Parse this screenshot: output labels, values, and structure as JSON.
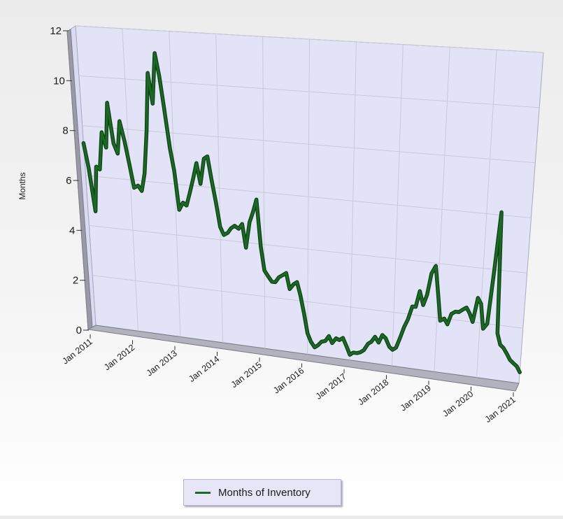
{
  "chart_data": {
    "type": "line",
    "ylabel": "Months",
    "xlabel": "",
    "ylim": [
      0,
      12
    ],
    "yticks": [
      0,
      2,
      4,
      6,
      8,
      10,
      12
    ],
    "xlim": [
      2011.0,
      2021.0
    ],
    "xtick_labels": [
      "Jan 2011",
      "Jan 2012",
      "Jan 2013",
      "Jan 2014",
      "Jan 2015",
      "Jan 2016",
      "Jan 2017",
      "Jan 2018",
      "Jan 2019",
      "Jan 2020",
      "Jan 2021"
    ],
    "grid": true,
    "style": "3d",
    "legend_position": "bottom",
    "series": [
      {
        "name": "Months of Inventory",
        "color": "#1a6a24",
        "points": [
          [
            2011.0,
            7.3
          ],
          [
            2011.08,
            6.3
          ],
          [
            2011.17,
            4.6
          ],
          [
            2011.25,
            6.4
          ],
          [
            2011.33,
            6.3
          ],
          [
            2011.42,
            7.8
          ],
          [
            2011.5,
            7.2
          ],
          [
            2011.58,
            9.0
          ],
          [
            2011.67,
            7.4
          ],
          [
            2011.75,
            7.0
          ],
          [
            2011.83,
            8.3
          ],
          [
            2011.92,
            7.5
          ],
          [
            2012.0,
            6.6
          ],
          [
            2012.08,
            5.7
          ],
          [
            2012.17,
            5.8
          ],
          [
            2012.25,
            5.6
          ],
          [
            2012.33,
            6.3
          ],
          [
            2012.42,
            8.0
          ],
          [
            2012.5,
            10.3
          ],
          [
            2012.58,
            9.1
          ],
          [
            2012.67,
            11.1
          ],
          [
            2012.75,
            10.2
          ],
          [
            2012.83,
            8.9
          ],
          [
            2012.92,
            7.4
          ],
          [
            2013.0,
            6.5
          ],
          [
            2013.08,
            5.0
          ],
          [
            2013.17,
            5.3
          ],
          [
            2013.25,
            5.2
          ],
          [
            2013.33,
            5.7
          ],
          [
            2013.42,
            6.3
          ],
          [
            2013.5,
            6.9
          ],
          [
            2013.58,
            6.1
          ],
          [
            2013.67,
            7.1
          ],
          [
            2013.75,
            7.2
          ],
          [
            2013.83,
            6.3
          ],
          [
            2013.92,
            5.4
          ],
          [
            2014.0,
            4.5
          ],
          [
            2014.08,
            4.2
          ],
          [
            2014.17,
            4.3
          ],
          [
            2014.25,
            4.5
          ],
          [
            2014.33,
            4.6
          ],
          [
            2014.42,
            4.5
          ],
          [
            2014.5,
            4.7
          ],
          [
            2014.58,
            3.8
          ],
          [
            2014.67,
            4.8
          ],
          [
            2014.75,
            5.2
          ],
          [
            2014.83,
            5.7
          ],
          [
            2014.92,
            3.9
          ],
          [
            2015.0,
            3.0
          ],
          [
            2015.08,
            2.8
          ],
          [
            2015.17,
            2.6
          ],
          [
            2015.25,
            2.6
          ],
          [
            2015.33,
            2.8
          ],
          [
            2015.42,
            2.9
          ],
          [
            2015.5,
            3.0
          ],
          [
            2015.58,
            2.4
          ],
          [
            2015.67,
            2.6
          ],
          [
            2015.75,
            2.7
          ],
          [
            2015.83,
            2.2
          ],
          [
            2015.92,
            1.5
          ],
          [
            2016.0,
            0.8
          ],
          [
            2016.08,
            0.5
          ],
          [
            2016.17,
            0.3
          ],
          [
            2016.25,
            0.4
          ],
          [
            2016.33,
            0.55
          ],
          [
            2016.42,
            0.6
          ],
          [
            2016.5,
            0.8
          ],
          [
            2016.58,
            0.55
          ],
          [
            2016.67,
            0.75
          ],
          [
            2016.75,
            0.7
          ],
          [
            2016.83,
            0.8
          ],
          [
            2016.92,
            0.5
          ],
          [
            2017.0,
            0.2
          ],
          [
            2017.08,
            0.3
          ],
          [
            2017.17,
            0.3
          ],
          [
            2017.25,
            0.35
          ],
          [
            2017.33,
            0.45
          ],
          [
            2017.42,
            0.7
          ],
          [
            2017.5,
            0.8
          ],
          [
            2017.58,
            1.0
          ],
          [
            2017.67,
            0.8
          ],
          [
            2017.75,
            1.1
          ],
          [
            2017.83,
            1.0
          ],
          [
            2017.92,
            0.7
          ],
          [
            2018.0,
            0.6
          ],
          [
            2018.08,
            0.7
          ],
          [
            2018.17,
            1.1
          ],
          [
            2018.25,
            1.5
          ],
          [
            2018.33,
            1.8
          ],
          [
            2018.42,
            2.3
          ],
          [
            2018.5,
            2.3
          ],
          [
            2018.58,
            2.9
          ],
          [
            2018.67,
            2.4
          ],
          [
            2018.75,
            2.8
          ],
          [
            2018.83,
            3.6
          ],
          [
            2018.92,
            3.9
          ],
          [
            2019.0,
            2.9
          ],
          [
            2019.08,
            1.9
          ],
          [
            2019.17,
            2.0
          ],
          [
            2019.25,
            1.8
          ],
          [
            2019.33,
            2.2
          ],
          [
            2019.42,
            2.3
          ],
          [
            2019.5,
            2.3
          ],
          [
            2019.58,
            2.4
          ],
          [
            2019.67,
            2.5
          ],
          [
            2019.75,
            2.3
          ],
          [
            2019.83,
            2.0
          ],
          [
            2019.92,
            2.9
          ],
          [
            2020.0,
            2.7
          ],
          [
            2020.08,
            1.8
          ],
          [
            2020.17,
            2.0
          ],
          [
            2020.25,
            3.9
          ],
          [
            2020.33,
            6.1
          ],
          [
            2020.42,
            1.7
          ],
          [
            2020.5,
            1.3
          ],
          [
            2020.58,
            1.2
          ],
          [
            2020.67,
            1.0
          ],
          [
            2020.75,
            0.8
          ],
          [
            2020.83,
            0.7
          ],
          [
            2020.92,
            0.6
          ],
          [
            2021.0,
            0.4
          ]
        ]
      }
    ]
  }
}
